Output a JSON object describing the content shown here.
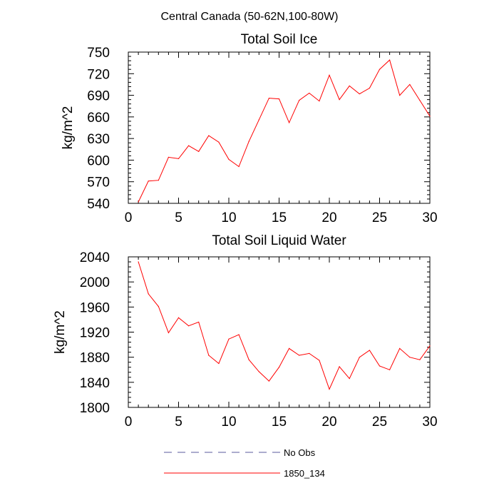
{
  "figure": {
    "main_title": "Central Canada (50-62N,100-80W)"
  },
  "chart_data": [
    {
      "type": "line",
      "title": "Total Soil Ice",
      "xlabel": "",
      "ylabel": "kg/m^2",
      "xlim": [
        0,
        30
      ],
      "ylim": [
        540,
        750
      ],
      "xticks": [
        0,
        5,
        10,
        15,
        20,
        25,
        30
      ],
      "yticks": [
        540,
        570,
        600,
        630,
        660,
        690,
        720,
        750
      ],
      "grid": false,
      "series": [
        {
          "name": "1850_134",
          "color": "#ff0000",
          "x": [
            1,
            2,
            3,
            4,
            5,
            6,
            7,
            8,
            9,
            10,
            11,
            12,
            13,
            14,
            15,
            16,
            17,
            18,
            19,
            20,
            21,
            22,
            23,
            24,
            25,
            26,
            27,
            28,
            29,
            30
          ],
          "y": [
            542,
            571,
            572,
            604,
            602,
            620,
            612,
            634,
            625,
            601,
            591,
            626,
            656,
            686,
            685,
            652,
            683,
            693,
            682,
            718,
            684,
            703,
            692,
            700,
            726,
            739,
            690,
            705,
            683,
            661
          ]
        }
      ]
    },
    {
      "type": "line",
      "title": "Total Soil Liquid Water",
      "xlabel": "",
      "ylabel": "kg/m^2",
      "xlim": [
        0,
        30
      ],
      "ylim": [
        1800,
        2040
      ],
      "xticks": [
        0,
        5,
        10,
        15,
        20,
        25,
        30
      ],
      "yticks": [
        1800,
        1840,
        1880,
        1920,
        1960,
        2000,
        2040
      ],
      "grid": false,
      "series": [
        {
          "name": "1850_134",
          "color": "#ff0000",
          "x": [
            1,
            2,
            3,
            4,
            5,
            6,
            7,
            8,
            9,
            10,
            11,
            12,
            13,
            14,
            15,
            16,
            17,
            18,
            19,
            20,
            21,
            22,
            23,
            24,
            25,
            26,
            27,
            28,
            29,
            30
          ],
          "y": [
            2032,
            1981,
            1961,
            1919,
            1943,
            1930,
            1936,
            1883,
            1870,
            1909,
            1916,
            1876,
            1857,
            1842,
            1864,
            1894,
            1883,
            1886,
            1875,
            1829,
            1865,
            1846,
            1880,
            1891,
            1866,
            1860,
            1894,
            1880,
            1876,
            1898
          ]
        }
      ]
    }
  ],
  "legend": {
    "placement": "bottom-center",
    "entries": [
      {
        "label": "No Obs",
        "color": "#5a5a9e",
        "style": "dashed"
      },
      {
        "label": "1850_134",
        "color": "#ff0000",
        "style": "solid"
      }
    ]
  }
}
